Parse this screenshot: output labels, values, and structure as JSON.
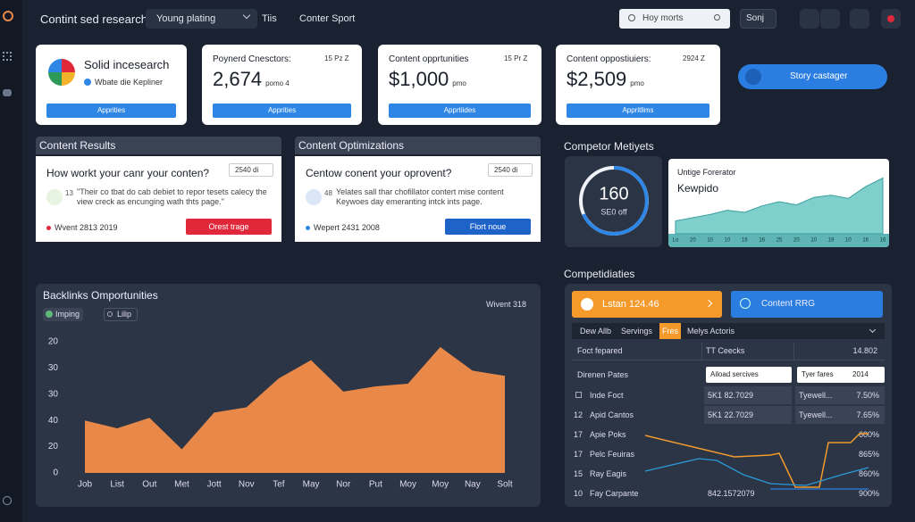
{
  "topbar": {
    "title": "Contint sed research",
    "dropdown": "Young plating",
    "menu_1": "Tiis",
    "menu_2": "Conter Sport",
    "search": "Hoy morts",
    "button": "Sonj"
  },
  "cards": [
    {
      "title": "Solid incesearch",
      "subtitle": "Wbate die Kepliner",
      "button": "Apprities"
    },
    {
      "label": "Poynerd Cnesctors:",
      "badge": "15 Pz Z",
      "value": "2,674",
      "unit": "pomo 4",
      "button": "Apprities"
    },
    {
      "label": "Content opprtunities",
      "badge": "15 Pr Z",
      "value": "$1,000",
      "unit": "pmo",
      "button": "Apprtiides"
    },
    {
      "label": "Content oppostiuiers:",
      "badge": "2924 Z",
      "value": "$2,509",
      "unit": "pmo",
      "button": "Appritlims"
    }
  ],
  "cta": "Story castager",
  "panels": [
    {
      "header": "Content Results",
      "question": "How workt your canr your conten?",
      "select": "2540 di",
      "quote_num": "13",
      "quote": "\"Their co tbat do cab debiet to repor tesets calecy the view creck as encunging wath thts page.\"",
      "date": "Wvent 2813 2019",
      "button": "Orest trage"
    },
    {
      "header": "Content Optimizations",
      "question": "Centow conent your oprovent?",
      "select": "2540 di",
      "quote_num": "48",
      "quote": "Yelates sall thar chofillator contert mise content Keywoes day emeranting intck ints page.",
      "date": "Wepert 2431 2008",
      "button": "Flort noue"
    }
  ],
  "competitor": {
    "heading": "Competor Metiyets",
    "gauge_value": "160",
    "gauge_label": "SE0 off",
    "card_title": "Untige Forerator",
    "card_subtitle": "Kewpido"
  },
  "chart_data": [
    {
      "type": "area",
      "title": "Backlinks Omportunities",
      "filter_1": "Imping",
      "filter_2": "Lilip",
      "note": "Wivent 318",
      "categories": [
        "Job",
        "List",
        "Out",
        "Met",
        "Jott",
        "Nov",
        "Tef",
        "May",
        "Nor",
        "Put",
        "Moy",
        "Moy",
        "Nay",
        "Solt"
      ],
      "values": [
        20,
        17,
        21,
        9,
        23,
        25,
        36,
        43,
        31,
        33,
        34,
        48,
        39,
        37
      ],
      "color": "#e8894a",
      "ylim": [
        0,
        50
      ],
      "yticks": [
        {
          "value": 50,
          "label": "20"
        },
        {
          "value": 40,
          "label": "30"
        },
        {
          "value": 30,
          "label": "30"
        },
        {
          "value": 20,
          "label": "40"
        },
        {
          "value": 10,
          "label": "20"
        },
        0
      ]
    },
    {
      "type": "area",
      "categories": [
        "Lo",
        "20",
        "10",
        "10",
        "16",
        "16",
        "25",
        "20",
        "10",
        "19",
        "10",
        "16",
        "16"
      ],
      "values": [
        12,
        15,
        18,
        22,
        20,
        26,
        30,
        27,
        34,
        36,
        33,
        44,
        52
      ],
      "color": "#7fcfcc",
      "ylim": [
        0,
        60
      ]
    }
  ],
  "competitive": {
    "heading": "Competidiaties",
    "button_1": "Lstan 124.46",
    "button_2": "Content RRG",
    "tabs": [
      "Dew Allb",
      "Servings",
      "Fres",
      "Melys Actoris"
    ],
    "summary": [
      "Foct fepared",
      "TT Ceecks",
      "14.802"
    ],
    "filter_row": [
      "Direnen Pates",
      "Aiload sercives",
      "Tyer fares",
      "2014"
    ],
    "rows": [
      {
        "name": "Inde Foct",
        "code": "5K1 82.7029",
        "type": "Tyewell...",
        "pct": "7.50%"
      },
      {
        "num": "12",
        "name": "Apid Cantos",
        "code": "5K1 22.7029",
        "type": "Tyewell...",
        "pct": "7.65%"
      },
      {
        "num": "17",
        "name": "Apie Poks",
        "pct": "600%"
      },
      {
        "num": "17",
        "name": "Pelc Feuiras",
        "pct": "865%"
      },
      {
        "num": "15",
        "name": "Ray Eagis",
        "pct": "860%"
      },
      {
        "num": "10",
        "name": "Fay Carpante",
        "code": "842.1572079",
        "pct": "900%"
      }
    ]
  }
}
